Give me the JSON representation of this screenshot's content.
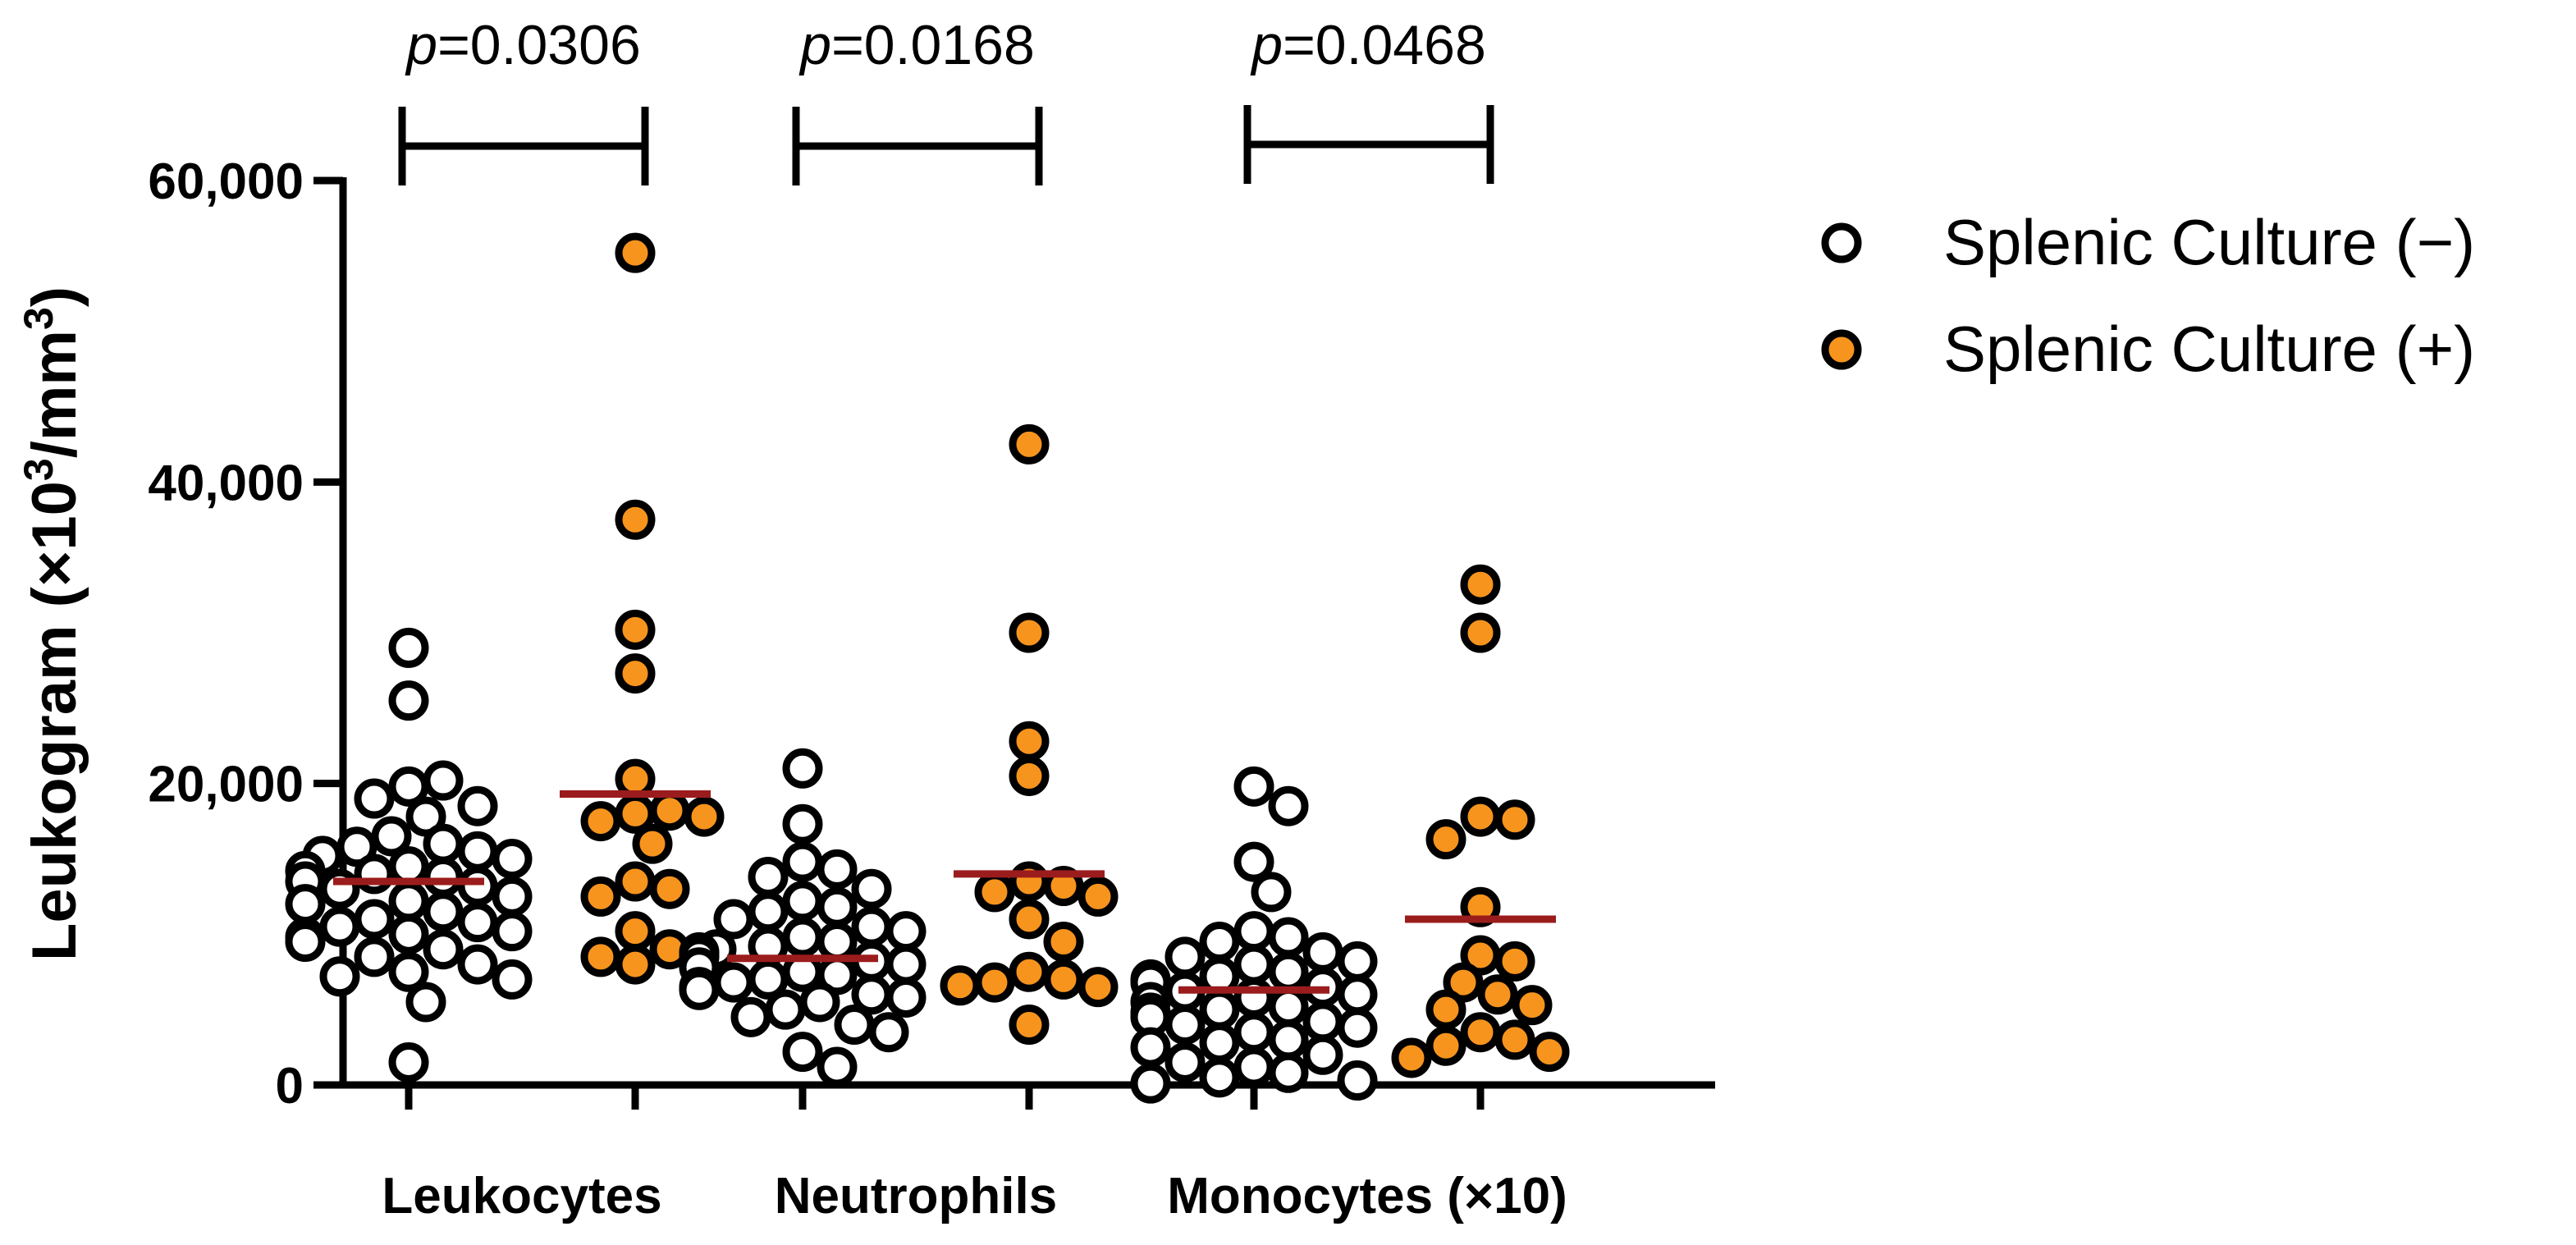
{
  "chart_data": {
    "type": "scatter",
    "title": "",
    "xlabel": "",
    "ylabel": {
      "prefix": "Leukogram (×10",
      "sup1": "3",
      "mid": "/mm",
      "sup2": "3",
      "suffix": ")"
    },
    "ylim": [
      0,
      60000
    ],
    "yticks": [
      {
        "value": 0,
        "label": "0"
      },
      {
        "value": 20000,
        "label": "20,000"
      },
      {
        "value": 40000,
        "label": "40,000"
      },
      {
        "value": 60000,
        "label": "60,000"
      }
    ],
    "colors": {
      "negative": "#ffffff",
      "positive": "#f7941d",
      "mean_line": "#9b1c1c",
      "stroke": "#000000"
    },
    "legend": [
      {
        "name": "Splenic Culture (−)",
        "color": "#ffffff"
      },
      {
        "name": "Splenic Culture (+)",
        "color": "#f7941d"
      }
    ],
    "groups": [
      {
        "category": "Leukocytes",
        "p_label": "p",
        "p_value": "=0.0306",
        "series": [
          {
            "name": "Splenic Culture (−)",
            "mean": 13500,
            "values": [
              29000,
              25500,
              19800,
              20200,
              19000,
              18500,
              17800,
              16500,
              16000,
              15800,
              15500,
              15200,
              15000,
              14500,
              14200,
              14000,
              13800,
              13500,
              13200,
              13000,
              12500,
              12200,
              12000,
              11500,
              11000,
              10800,
              10500,
              10200,
              10000,
              9800,
              9500,
              9000,
              8500,
              8000,
              7500,
              7200,
              7000,
              5500,
              1500
            ]
          },
          {
            "name": "Splenic Culture (+)",
            "mean": 19300,
            "values": [
              55200,
              37500,
              30200,
              27300,
              20300,
              18000,
              18200,
              17500,
              17800,
              16000,
              13500,
              13000,
              12500,
              10200,
              9000,
              8500,
              8000
            ]
          }
        ]
      },
      {
        "category": "Neutrophils",
        "p_label": "p",
        "p_value": "=0.0168",
        "series": [
          {
            "name": "Splenic Culture (−)",
            "mean": 8400,
            "values": [
              21000,
              17300,
              14800,
              14300,
              13800,
              13000,
              12200,
              11800,
              11500,
              11000,
              10500,
              10200,
              9800,
              9500,
              9200,
              9000,
              8800,
              8500,
              8200,
              8000,
              7800,
              7500,
              7300,
              7000,
              6800,
              6500,
              6300,
              6000,
              5800,
              5500,
              5000,
              4500,
              4000,
              3500,
              2200,
              1200
            ]
          },
          {
            "name": "Splenic Culture (+)",
            "mean": 14000,
            "values": [
              42500,
              30000,
              22800,
              20500,
              13500,
              13200,
              12800,
              12500,
              11000,
              9500,
              7500,
              7000,
              6800,
              6500,
              6600,
              4000
            ]
          }
        ]
      },
      {
        "category": "Monocytes (×10)",
        "p_label": "p",
        "p_value": "=0.0468",
        "series": [
          {
            "name": "Splenic Culture (−)",
            "mean": 6300,
            "values": [
              19800,
              18500,
              14800,
              12800,
              10200,
              9800,
              9500,
              8800,
              8500,
              8200,
              8000,
              7500,
              7200,
              7000,
              6800,
              6500,
              6200,
              6000,
              5800,
              5500,
              5200,
              5000,
              4800,
              4500,
              4200,
              4000,
              3800,
              3500,
              3000,
              2800,
              2500,
              2000,
              1500,
              1200,
              800,
              500,
              300,
              100
            ]
          },
          {
            "name": "Splenic Culture (+)",
            "mean": 11000,
            "values": [
              33200,
              30000,
              17800,
              17600,
              16300,
              11800,
              8600,
              8200,
              6800,
              6000,
              5300,
              5000,
              3500,
              3000,
              2600,
              2200,
              1800
            ]
          }
        ]
      }
    ]
  }
}
